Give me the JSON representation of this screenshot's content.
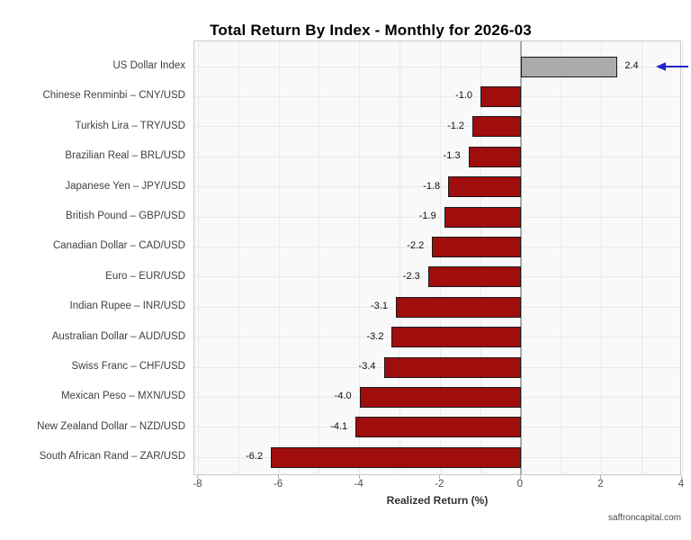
{
  "title": "Total Return By Index - Monthly for 2026-03",
  "xlabel": "Realized Return (%)",
  "watermark": "saffroncapital.com",
  "colors": {
    "negative_bar": "#a00d0d",
    "positive_bar": "#ababab",
    "bar_border": "#1a1a1a",
    "arrow": "#2222cc"
  },
  "chart_data": {
    "type": "bar",
    "orientation": "horizontal",
    "title": "Total Return By Index - Monthly for 2026-03",
    "xlabel": "Realized Return (%)",
    "ylabel": "",
    "categories": [
      "US Dollar Index",
      "Chinese Renminbi – CNY/USD",
      "Turkish Lira – TRY/USD",
      "Brazilian Real – BRL/USD",
      "Japanese Yen – JPY/USD",
      "British Pound – GBP/USD",
      "Canadian Dollar – CAD/USD",
      "Euro – EUR/USD",
      "Indian Rupee – INR/USD",
      "Australian Dollar – AUD/USD",
      "Swiss Franc – CHF/USD",
      "Mexican Peso – MXN/USD",
      "New Zealand Dollar – NZD/USD",
      "South African Rand – ZAR/USD"
    ],
    "values": [
      2.4,
      -1.0,
      -1.2,
      -1.3,
      -1.8,
      -1.9,
      -2.2,
      -2.3,
      -3.1,
      -3.2,
      -3.4,
      -4.0,
      -4.1,
      -6.2
    ],
    "bar_labels": [
      "2.4",
      "-1.0",
      "-1.2",
      "-1.3",
      "-1.8",
      "-1.9",
      "-2.2",
      "-2.3",
      "-3.1",
      "-3.2",
      "-3.4",
      "-4.0",
      "-4.1",
      "-6.2"
    ],
    "xlim": [
      -8.1,
      4
    ],
    "xticks": [
      -8,
      -6,
      -4,
      -2,
      0,
      2,
      4
    ],
    "xtick_labels": [
      "-8",
      "-6",
      "-4",
      "-2",
      "0",
      "2",
      "4"
    ],
    "xgrid": [
      -8,
      -7,
      -6,
      -5,
      -4,
      -3,
      -2,
      -1,
      0,
      1,
      2,
      3,
      4
    ],
    "grid": true,
    "legend": false,
    "highlight": {
      "category": "US Dollar Index",
      "marker": "left-arrow"
    }
  }
}
